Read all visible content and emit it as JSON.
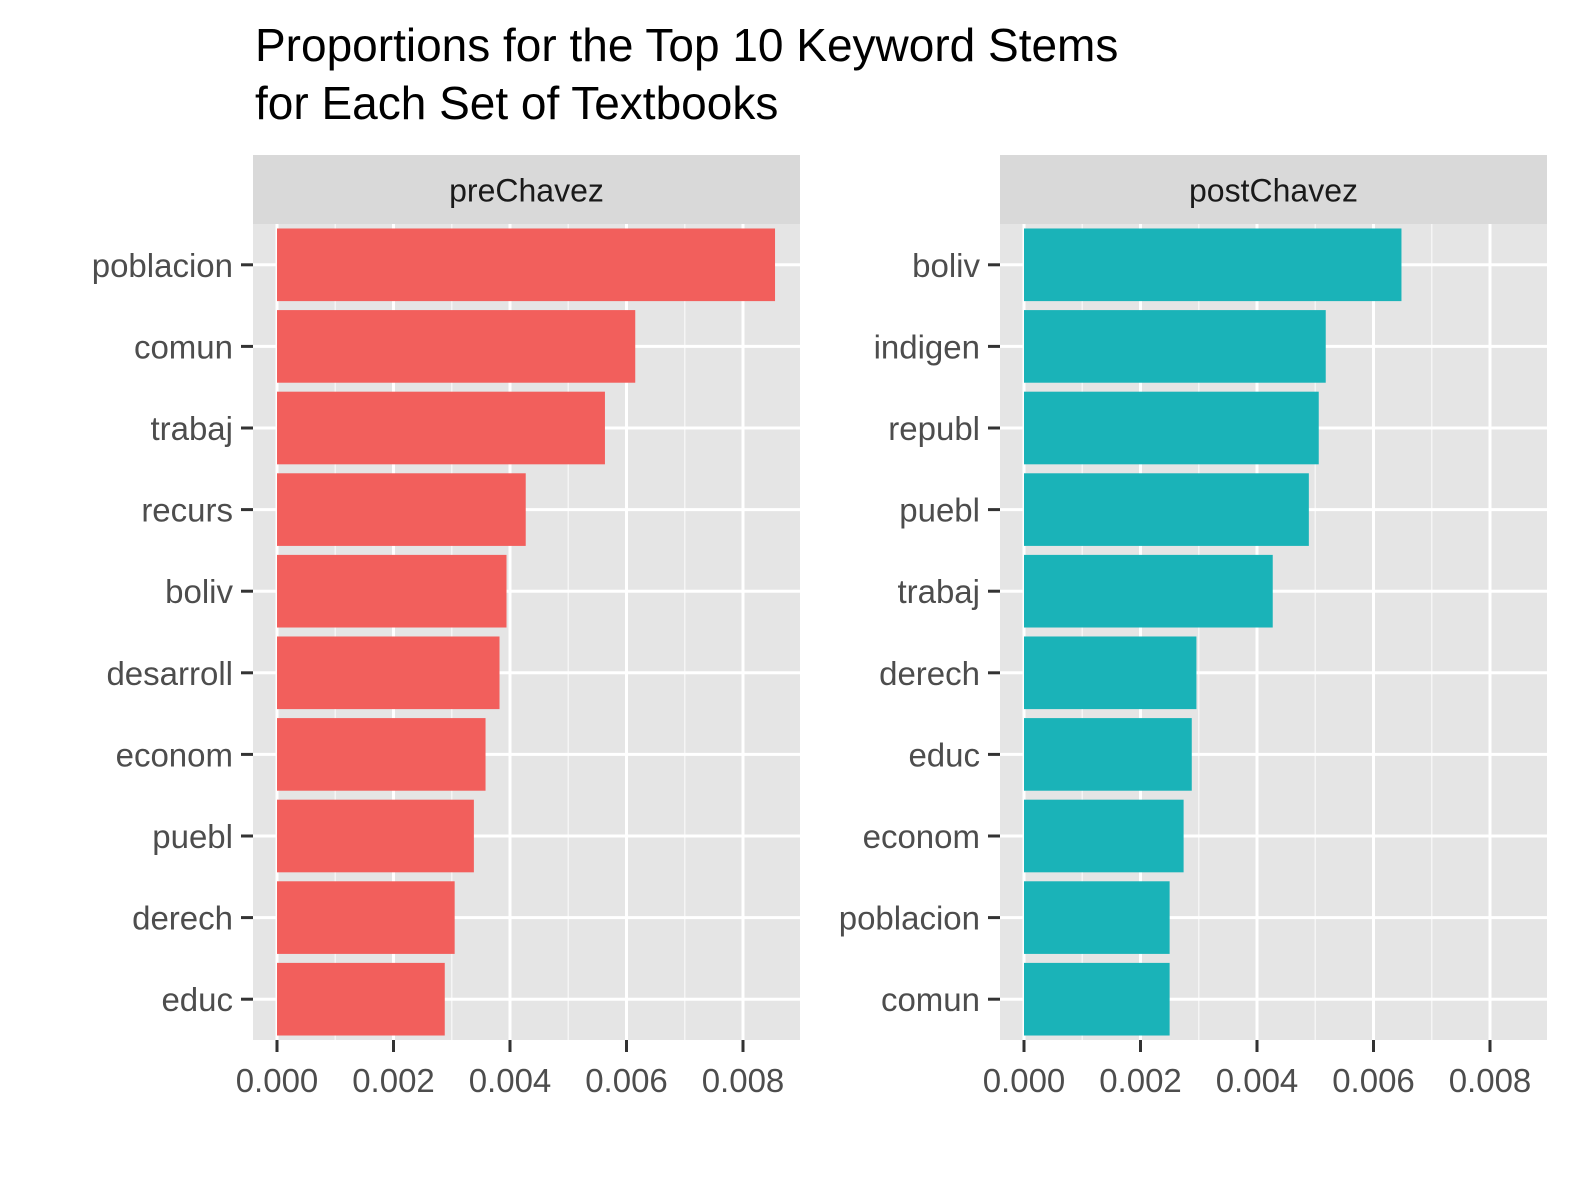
{
  "chart_data": {
    "type": "bar",
    "orientation": "horizontal",
    "title": [
      "Proportions for the Top 10 Keyword Stems",
      "for Each Set of Textbooks"
    ],
    "xlim": [
      0,
      0.009
    ],
    "x_ticks": [
      "0.000",
      "0.002",
      "0.004",
      "0.006",
      "0.008"
    ],
    "x_tick_values": [
      0,
      0.002,
      0.004,
      0.006,
      0.008
    ],
    "grid": true,
    "panel_background": "#e5e5e5",
    "strip_background": "#d9d9d9",
    "panels": [
      {
        "strip_label": "preChavez",
        "color": "#f25f5c",
        "categories": [
          "poblacion",
          "comun",
          "trabaj",
          "recurs",
          "boliv",
          "desarroll",
          "econom",
          "puebl",
          "derech",
          "educ"
        ],
        "values": [
          0.00855,
          0.00615,
          0.00563,
          0.00427,
          0.00394,
          0.00382,
          0.00358,
          0.00338,
          0.00305,
          0.00288
        ]
      },
      {
        "strip_label": "postChavez",
        "color": "#1ab3b8",
        "categories": [
          "boliv",
          "indigen",
          "republ",
          "puebl",
          "trabaj",
          "derech",
          "educ",
          "econom",
          "poblacion",
          "comun"
        ],
        "values": [
          0.00648,
          0.00518,
          0.00506,
          0.00489,
          0.00427,
          0.00296,
          0.00288,
          0.00274,
          0.0025,
          0.0025
        ]
      }
    ]
  }
}
